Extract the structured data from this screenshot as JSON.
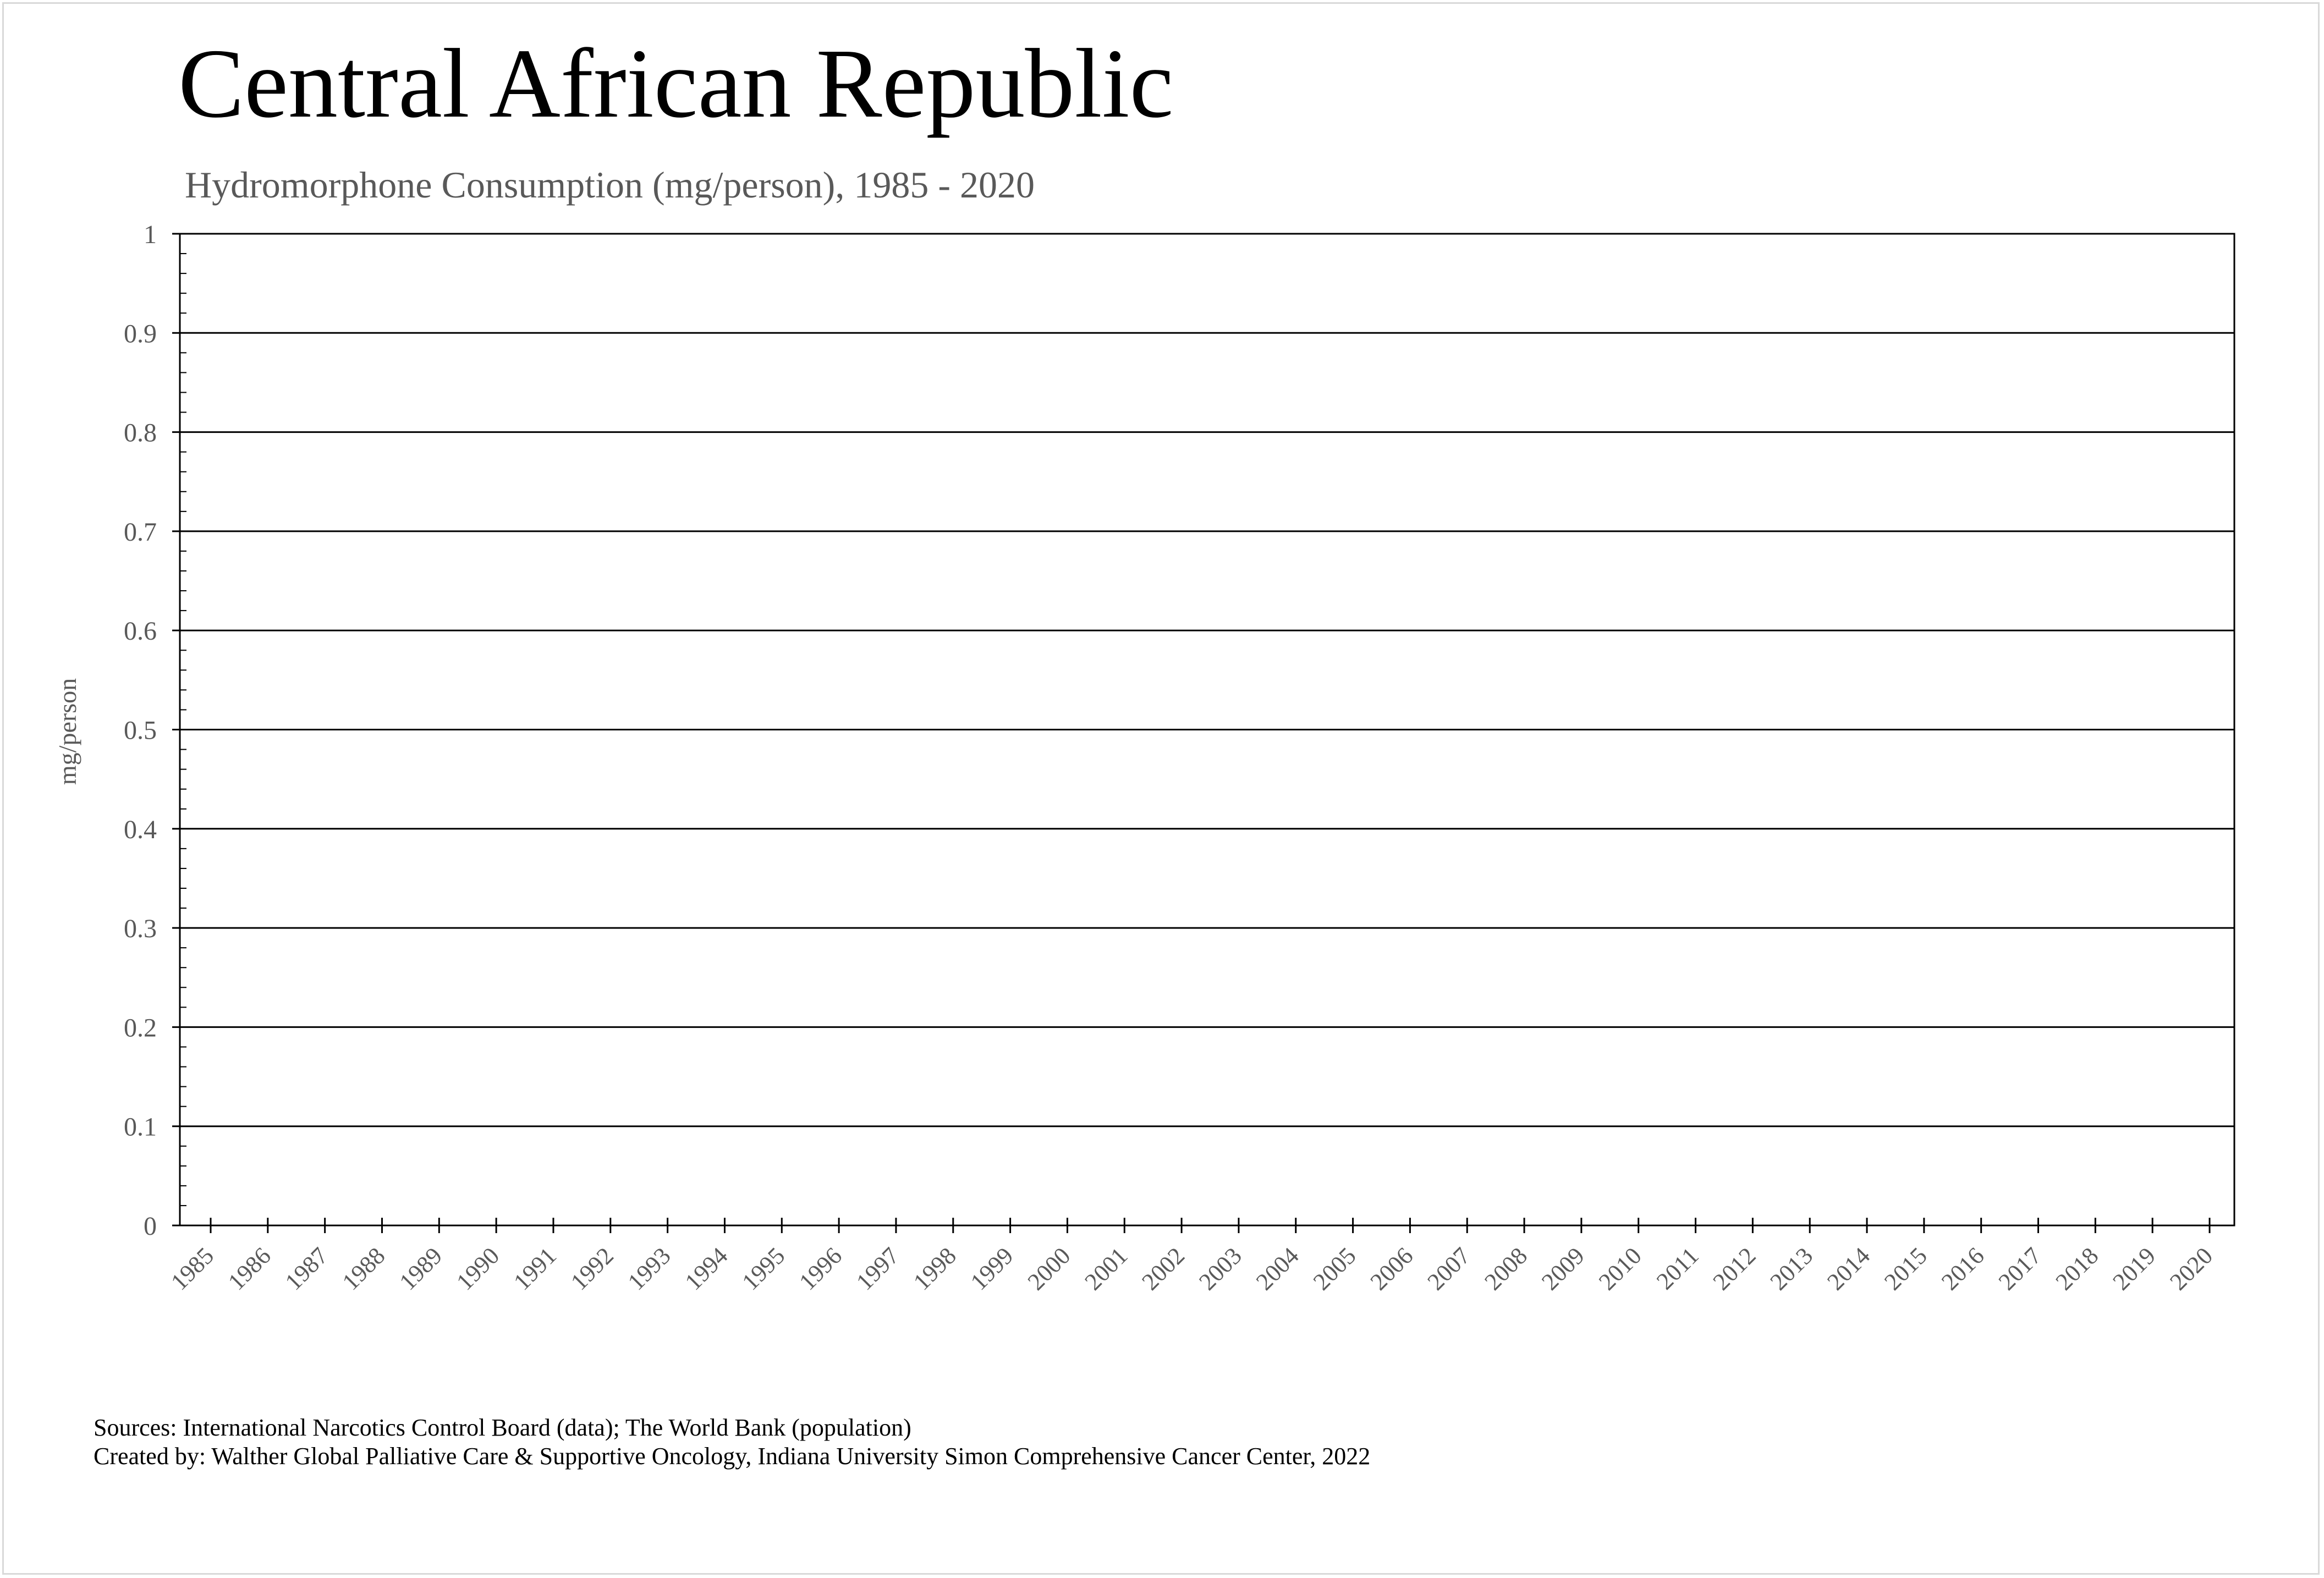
{
  "chart_data": {
    "type": "line",
    "title": "Central African Republic",
    "subtitle": "Hydromorphone Consumption (mg/person), 1985 - 2020",
    "xlabel": "",
    "ylabel": "mg/person",
    "ylim": [
      0,
      1
    ],
    "yticks": [
      "0",
      "0.1",
      "0.2",
      "0.3",
      "0.4",
      "0.5",
      "0.6",
      "0.7",
      "0.8",
      "0.9",
      "1"
    ],
    "categories": [
      "1985",
      "1986",
      "1987",
      "1988",
      "1989",
      "1990",
      "1991",
      "1992",
      "1993",
      "1994",
      "1995",
      "1996",
      "1997",
      "1998",
      "1999",
      "2000",
      "2001",
      "2002",
      "2003",
      "2004",
      "2005",
      "2006",
      "2007",
      "2008",
      "2009",
      "2010",
      "2011",
      "2012",
      "2013",
      "2014",
      "2015",
      "2016",
      "2017",
      "2018",
      "2019",
      "2020"
    ],
    "series": [],
    "grid": true,
    "legend": "none"
  },
  "footer": {
    "sources": "Sources: International Narcotics Control Board (data); The World Bank (population)",
    "created_by": "Created by: Walther Global Palliative Care & Supportive Oncology, Indiana University Simon Comprehensive Cancer Center, 2022"
  },
  "colors": {
    "text_dark": "#000000",
    "text_muted": "#595959",
    "gridline": "#000000",
    "frame_border": "#d9d9d9"
  }
}
